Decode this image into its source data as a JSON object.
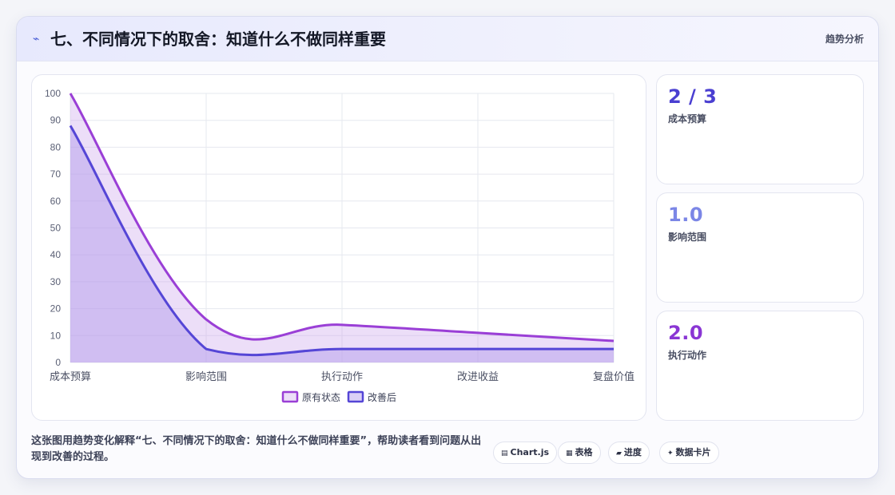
{
  "header": {
    "icon": "chart-line-icon",
    "title": "七、不同情况下的取舍：知道什么不做同样重要",
    "tag": "趋势分析"
  },
  "chart_data": {
    "type": "line",
    "categories": [
      "成本预算",
      "影响范围",
      "执行动作",
      "改进收益",
      "复盘价值"
    ],
    "ylim": [
      0,
      100
    ],
    "yticks": [
      0,
      10,
      20,
      30,
      40,
      50,
      60,
      70,
      80,
      90,
      100
    ],
    "grid": true,
    "legend_position": "bottom",
    "series": [
      {
        "name": "原有状态",
        "values": [
          100,
          16,
          14,
          11,
          8
        ],
        "color": "#9a3fd6",
        "fill": "rgba(200,160,235,0.35)"
      },
      {
        "name": "改善后",
        "values": [
          88,
          5,
          5,
          5,
          5
        ],
        "color": "#5546d6",
        "fill": "rgba(175,150,235,0.45)"
      }
    ]
  },
  "stats": [
    {
      "value": "2 / 3",
      "label": "成本预算",
      "color": "#4a3fd1"
    },
    {
      "value": "1.0",
      "label": "影响范围",
      "color": "#7b86e6"
    },
    {
      "value": "2.0",
      "label": "执行动作",
      "color": "#8a36d4"
    }
  ],
  "footer": {
    "description": "这张图用趋势变化解释“七、不同情况下的取舍：知道什么不做同样重要”，帮助读者看到问题从出现到改善的过程。",
    "chips": [
      {
        "icon": "▤",
        "label": "Chart.js"
      },
      {
        "icon": "▦",
        "label": "表格"
      },
      {
        "icon": "▰",
        "label": "进度"
      },
      {
        "icon": "✦",
        "label": "数据卡片"
      }
    ]
  }
}
